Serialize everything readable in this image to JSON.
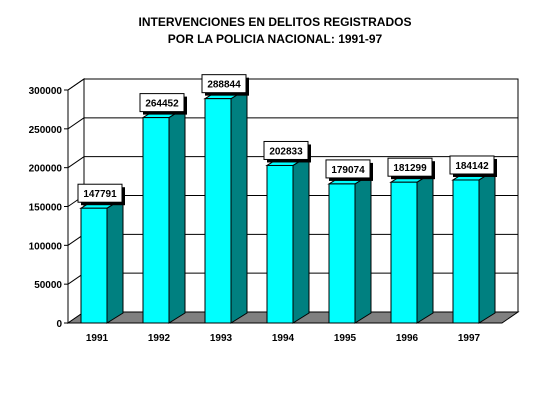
{
  "chart_data": {
    "type": "bar",
    "title": [
      "INTERVENCIONES EN DELITOS REGISTRADOS",
      "POR LA POLICIA NACIONAL: 1991-97"
    ],
    "categories": [
      "1991",
      "1992",
      "1993",
      "1994",
      "1995",
      "1996",
      "1997"
    ],
    "values": [
      147791,
      264452,
      288844,
      202833,
      179074,
      181299,
      184142
    ],
    "data_labels": [
      "147791",
      "264452",
      "288844",
      "202833",
      "179074",
      "181299",
      "184142"
    ],
    "ylim": [
      0,
      300000
    ],
    "yticks": [
      0,
      50000,
      100000,
      150000,
      200000,
      250000,
      300000
    ],
    "ytick_labels": [
      "0",
      "50000",
      "100000",
      "150000",
      "200000",
      "250000",
      "300000"
    ],
    "grid": true,
    "style": "3d-bar",
    "colors": {
      "bar_front": "#00ffff",
      "bar_side": "#008080",
      "floor": "#808080"
    }
  }
}
